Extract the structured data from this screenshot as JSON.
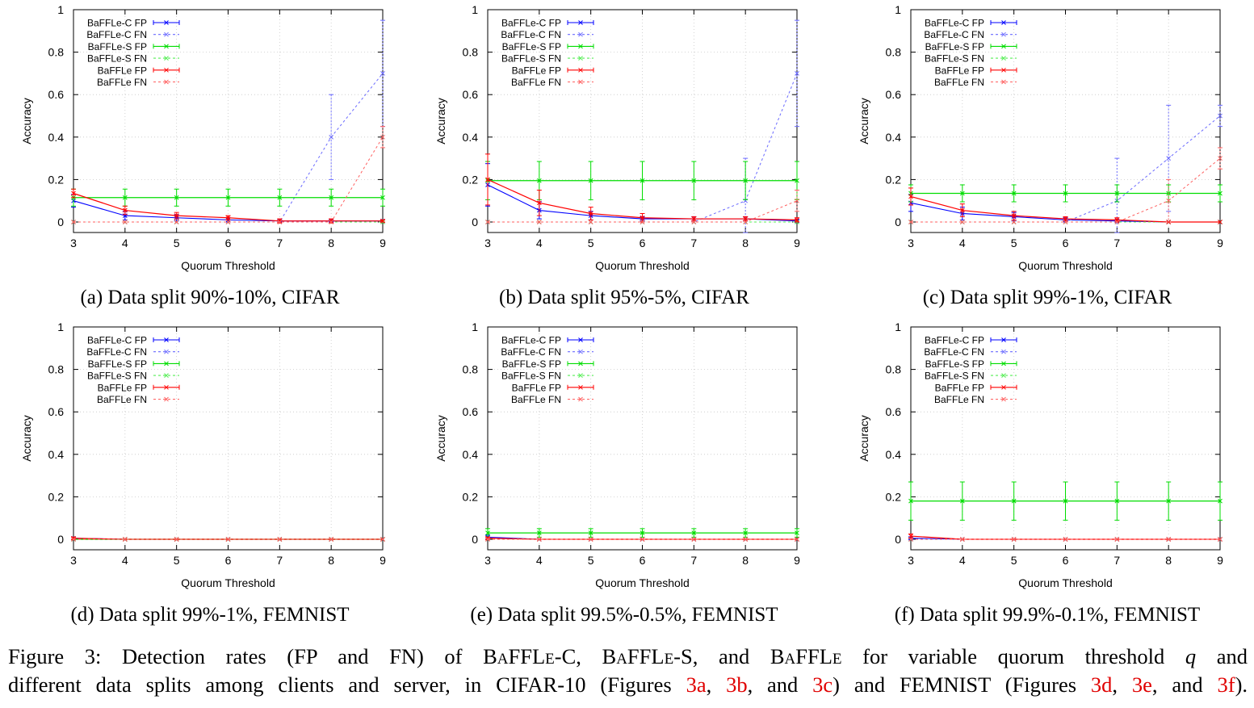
{
  "figure_caption": {
    "line1": {
      "prefix": "Figure 3: Detection rates (FP and FN) of ",
      "name_c": "BaFFLe-C",
      "sep1": ", ",
      "name_s": "BaFFLe-S",
      "sep2": ", and ",
      "name": "BaFFLe",
      "mid": " for variable quorum threshold ",
      "var": "q",
      "end": " and"
    },
    "line2": {
      "prefix": "different data splits among clients and server, in CIFAR-10 (Figures ",
      "ref_3a": "3a",
      "sep_a": ", ",
      "ref_3b": "3b",
      "sep_b": ", and ",
      "ref_3c": "3c",
      "mid": ") and FEMNIST (Figures ",
      "ref_3d": "3d",
      "sep_d": ", ",
      "ref_3e": "3e",
      "sep_e": ", and ",
      "ref_3f": "3f",
      "end": ")."
    }
  },
  "colors": {
    "baffle_c": "#0000ff",
    "baffle_c_fn": "#6a6aff",
    "baffle_s": "#00dd00",
    "baffle_s_fn": "#55ee55",
    "baffle": "#ff0000",
    "baffle_fn": "#ff6060",
    "ref": "#e00000"
  },
  "chart_data": [
    {
      "type": "line",
      "id": "3a",
      "caption": "(a) Data split 90%-10%, CIFAR",
      "xlabel": "Quorum Threshold",
      "ylabel": "Accuracy",
      "xlim": [
        3,
        9
      ],
      "ylim": [
        0,
        1
      ],
      "xticks": [
        "3",
        "4",
        "5",
        "6",
        "7",
        "8",
        "9"
      ],
      "yticks": [
        "0",
        "0.2",
        "0.4",
        "0.6",
        "0.8",
        "1"
      ],
      "grid": true,
      "legend_position": "top-left",
      "x": [
        3,
        4,
        5,
        6,
        7,
        8,
        9
      ],
      "series": [
        {
          "name": "BaFFLe-C FP",
          "values": [
            0.1,
            0.03,
            0.02,
            0.01,
            0.005,
            0.005,
            0.005
          ],
          "err": [
            0.03,
            0.02,
            0.015,
            0.01,
            0.005,
            0.005,
            0.005
          ]
        },
        {
          "name": "BaFFLe-C FN",
          "values": [
            0,
            0,
            0,
            0,
            0,
            0.4,
            0.7
          ],
          "err": [
            0,
            0,
            0,
            0,
            0,
            0.2,
            0.25
          ]
        },
        {
          "name": "BaFFLe-S FP",
          "values": [
            0.115,
            0.115,
            0.115,
            0.115,
            0.115,
            0.115,
            0.115
          ],
          "err": [
            0.04,
            0.04,
            0.04,
            0.04,
            0.04,
            0.04,
            0.04
          ]
        },
        {
          "name": "BaFFLe-S FN",
          "values": [
            0,
            0,
            0,
            0,
            0,
            0,
            0
          ],
          "err": [
            0,
            0,
            0,
            0,
            0,
            0,
            0
          ]
        },
        {
          "name": "BaFFLe FP",
          "values": [
            0.135,
            0.055,
            0.03,
            0.02,
            0.005,
            0.005,
            0.005
          ],
          "err": [
            0.02,
            0.02,
            0.015,
            0.01,
            0.01,
            0.01,
            0.005
          ]
        },
        {
          "name": "BaFFLe FN",
          "values": [
            0,
            0,
            0,
            0,
            0,
            0,
            0.4
          ],
          "err": [
            0,
            0,
            0,
            0,
            0,
            0,
            0.05
          ]
        }
      ]
    },
    {
      "type": "line",
      "id": "3b",
      "caption": "(b) Data split 95%-5%, CIFAR",
      "xlabel": "Quorum Threshold",
      "ylabel": "Accuracy",
      "xlim": [
        3,
        9
      ],
      "ylim": [
        0,
        1
      ],
      "xticks": [
        "3",
        "4",
        "5",
        "6",
        "7",
        "8",
        "9"
      ],
      "yticks": [
        "0",
        "0.2",
        "0.4",
        "0.6",
        "0.8",
        "1"
      ],
      "grid": true,
      "legend_position": "top-left",
      "x": [
        3,
        4,
        5,
        6,
        7,
        8,
        9
      ],
      "series": [
        {
          "name": "BaFFLe-C FP",
          "values": [
            0.175,
            0.055,
            0.03,
            0.015,
            0.015,
            0.015,
            0.005
          ],
          "err": [
            0.1,
            0.04,
            0.02,
            0.01,
            0.01,
            0.01,
            0.005
          ]
        },
        {
          "name": "BaFFLe-C FN",
          "values": [
            0,
            0,
            0,
            0,
            0,
            0.1,
            0.7
          ],
          "err": [
            0,
            0,
            0,
            0,
            0,
            0.2,
            0.25
          ]
        },
        {
          "name": "BaFFLe-S FP",
          "values": [
            0.195,
            0.195,
            0.195,
            0.195,
            0.195,
            0.195,
            0.195
          ],
          "err": [
            0.09,
            0.09,
            0.09,
            0.09,
            0.09,
            0.09,
            0.09
          ]
        },
        {
          "name": "BaFFLe-S FN",
          "values": [
            0,
            0,
            0,
            0,
            0,
            0,
            0
          ],
          "err": [
            0,
            0,
            0,
            0,
            0,
            0,
            0
          ]
        },
        {
          "name": "BaFFLe FP",
          "values": [
            0.2,
            0.09,
            0.04,
            0.02,
            0.015,
            0.015,
            0.01
          ],
          "err": [
            0.12,
            0.06,
            0.03,
            0.02,
            0.01,
            0.01,
            0.01
          ]
        },
        {
          "name": "BaFFLe FN",
          "values": [
            0,
            0,
            0,
            0,
            0,
            0,
            0.1
          ],
          "err": [
            0,
            0,
            0,
            0,
            0,
            0,
            0.05
          ]
        }
      ]
    },
    {
      "type": "line",
      "id": "3c",
      "caption": "(c) Data split 99%-1%, CIFAR",
      "xlabel": "Quorum Threshold",
      "ylabel": "Accuracy",
      "xlim": [
        3,
        9
      ],
      "ylim": [
        0,
        1
      ],
      "xticks": [
        "3",
        "4",
        "5",
        "6",
        "7",
        "8",
        "9"
      ],
      "yticks": [
        "0",
        "0.2",
        "0.4",
        "0.6",
        "0.8",
        "1"
      ],
      "grid": true,
      "legend_position": "top-left",
      "x": [
        3,
        4,
        5,
        6,
        7,
        8,
        9
      ],
      "series": [
        {
          "name": "BaFFLe-C FP",
          "values": [
            0.09,
            0.04,
            0.025,
            0.01,
            0.005,
            0,
            0
          ],
          "err": [
            0.04,
            0.03,
            0.02,
            0.01,
            0.005,
            0,
            0
          ]
        },
        {
          "name": "BaFFLe-C FN",
          "values": [
            0,
            0,
            0,
            0,
            0.1,
            0.3,
            0.5
          ],
          "err": [
            0,
            0,
            0,
            0,
            0.2,
            0.25,
            0.05
          ]
        },
        {
          "name": "BaFFLe-S FP",
          "values": [
            0.135,
            0.135,
            0.135,
            0.135,
            0.135,
            0.135,
            0.135
          ],
          "err": [
            0.04,
            0.04,
            0.04,
            0.04,
            0.04,
            0.04,
            0.04
          ]
        },
        {
          "name": "BaFFLe-S FN",
          "values": [
            0,
            0,
            0,
            0,
            0,
            0,
            0
          ],
          "err": [
            0,
            0,
            0,
            0,
            0,
            0,
            0
          ]
        },
        {
          "name": "BaFFLe FP",
          "values": [
            0.12,
            0.055,
            0.03,
            0.015,
            0.01,
            0,
            0
          ],
          "err": [
            0.04,
            0.03,
            0.02,
            0.01,
            0.01,
            0,
            0
          ]
        },
        {
          "name": "BaFFLe FN",
          "values": [
            0,
            0,
            0,
            0,
            0,
            0.1,
            0.3
          ],
          "err": [
            0,
            0,
            0,
            0,
            0,
            0.1,
            0.05
          ]
        }
      ]
    },
    {
      "type": "line",
      "id": "3d",
      "caption": "(d) Data split 99%-1%, FEMNIST",
      "xlabel": "Quorum Threshold",
      "ylabel": "Accuracy",
      "xlim": [
        3,
        9
      ],
      "ylim": [
        0,
        1
      ],
      "xticks": [
        "3",
        "4",
        "5",
        "6",
        "7",
        "8",
        "9"
      ],
      "yticks": [
        "0",
        "0.2",
        "0.4",
        "0.6",
        "0.8",
        "1"
      ],
      "grid": true,
      "legend_position": "top-left",
      "x": [
        3,
        4,
        5,
        6,
        7,
        8,
        9
      ],
      "series": [
        {
          "name": "BaFFLe-C FP",
          "values": [
            0.005,
            0,
            0,
            0,
            0,
            0,
            0
          ],
          "err": [
            0.005,
            0,
            0,
            0,
            0,
            0,
            0
          ]
        },
        {
          "name": "BaFFLe-C FN",
          "values": [
            0,
            0,
            0,
            0,
            0,
            0,
            0
          ],
          "err": [
            0,
            0,
            0,
            0,
            0,
            0,
            0
          ]
        },
        {
          "name": "BaFFLe-S FP",
          "values": [
            0,
            0,
            0,
            0,
            0,
            0,
            0
          ],
          "err": [
            0,
            0,
            0,
            0,
            0,
            0,
            0
          ]
        },
        {
          "name": "BaFFLe-S FN",
          "values": [
            0,
            0,
            0,
            0,
            0,
            0,
            0
          ],
          "err": [
            0,
            0,
            0,
            0,
            0,
            0,
            0
          ]
        },
        {
          "name": "BaFFLe FP",
          "values": [
            0.005,
            0,
            0,
            0,
            0,
            0,
            0
          ],
          "err": [
            0.005,
            0,
            0,
            0,
            0,
            0,
            0
          ]
        },
        {
          "name": "BaFFLe FN",
          "values": [
            0,
            0,
            0,
            0,
            0,
            0,
            0
          ],
          "err": [
            0,
            0,
            0,
            0,
            0,
            0,
            0
          ]
        }
      ]
    },
    {
      "type": "line",
      "id": "3e",
      "caption": "(e) Data split 99.5%-0.5%, FEMNIST",
      "xlabel": "Quorum Threshold",
      "ylabel": "Accuracy",
      "xlim": [
        3,
        9
      ],
      "ylim": [
        0,
        1
      ],
      "xticks": [
        "3",
        "4",
        "5",
        "6",
        "7",
        "8",
        "9"
      ],
      "yticks": [
        "0",
        "0.2",
        "0.4",
        "0.6",
        "0.8",
        "1"
      ],
      "grid": true,
      "legend_position": "top-left",
      "x": [
        3,
        4,
        5,
        6,
        7,
        8,
        9
      ],
      "series": [
        {
          "name": "BaFFLe-C FP",
          "values": [
            0.01,
            0,
            0,
            0,
            0,
            0,
            0
          ],
          "err": [
            0.01,
            0,
            0,
            0,
            0,
            0,
            0
          ]
        },
        {
          "name": "BaFFLe-C FN",
          "values": [
            0,
            0,
            0,
            0,
            0,
            0,
            0
          ],
          "err": [
            0,
            0,
            0,
            0,
            0,
            0,
            0
          ]
        },
        {
          "name": "BaFFLe-S FP",
          "values": [
            0.03,
            0.03,
            0.03,
            0.03,
            0.03,
            0.03,
            0.03
          ],
          "err": [
            0.02,
            0.02,
            0.02,
            0.02,
            0.02,
            0.02,
            0.02
          ]
        },
        {
          "name": "BaFFLe-S FN",
          "values": [
            0,
            0,
            0,
            0,
            0,
            0,
            0
          ],
          "err": [
            0,
            0,
            0,
            0,
            0,
            0,
            0
          ]
        },
        {
          "name": "BaFFLe FP",
          "values": [
            0.005,
            0,
            0,
            0,
            0,
            0,
            0
          ],
          "err": [
            0.005,
            0,
            0,
            0,
            0,
            0,
            0
          ]
        },
        {
          "name": "BaFFLe FN",
          "values": [
            0,
            0,
            0,
            0,
            0,
            0,
            0
          ],
          "err": [
            0,
            0,
            0,
            0,
            0,
            0,
            0
          ]
        }
      ]
    },
    {
      "type": "line",
      "id": "3f",
      "caption": "(f) Data split 99.9%-0.1%, FEMNIST",
      "xlabel": "Quorum Threshold",
      "ylabel": "Accuracy",
      "xlim": [
        3,
        9
      ],
      "ylim": [
        0,
        1
      ],
      "xticks": [
        "3",
        "4",
        "5",
        "6",
        "7",
        "8",
        "9"
      ],
      "yticks": [
        "0",
        "0.2",
        "0.4",
        "0.6",
        "0.8",
        "1"
      ],
      "grid": true,
      "legend_position": "top-left",
      "x": [
        3,
        4,
        5,
        6,
        7,
        8,
        9
      ],
      "series": [
        {
          "name": "BaFFLe-C FP",
          "values": [
            0.005,
            0,
            0,
            0,
            0,
            0,
            0
          ],
          "err": [
            0.005,
            0,
            0,
            0,
            0,
            0,
            0
          ]
        },
        {
          "name": "BaFFLe-C FN",
          "values": [
            0,
            0,
            0,
            0,
            0,
            0,
            0
          ],
          "err": [
            0,
            0,
            0,
            0,
            0,
            0,
            0
          ]
        },
        {
          "name": "BaFFLe-S FP",
          "values": [
            0.18,
            0.18,
            0.18,
            0.18,
            0.18,
            0.18,
            0.18
          ],
          "err": [
            0.09,
            0.09,
            0.09,
            0.09,
            0.09,
            0.09,
            0.09
          ]
        },
        {
          "name": "BaFFLe-S FN",
          "values": [
            0,
            0,
            0,
            0,
            0,
            0,
            0
          ],
          "err": [
            0,
            0,
            0,
            0,
            0,
            0,
            0
          ]
        },
        {
          "name": "BaFFLe FP",
          "values": [
            0.015,
            0,
            0,
            0,
            0,
            0,
            0
          ],
          "err": [
            0.01,
            0,
            0,
            0,
            0,
            0,
            0
          ]
        },
        {
          "name": "BaFFLe FN",
          "values": [
            0,
            0,
            0,
            0,
            0,
            0,
            0
          ],
          "err": [
            0,
            0,
            0,
            0,
            0,
            0,
            0
          ]
        }
      ]
    }
  ]
}
